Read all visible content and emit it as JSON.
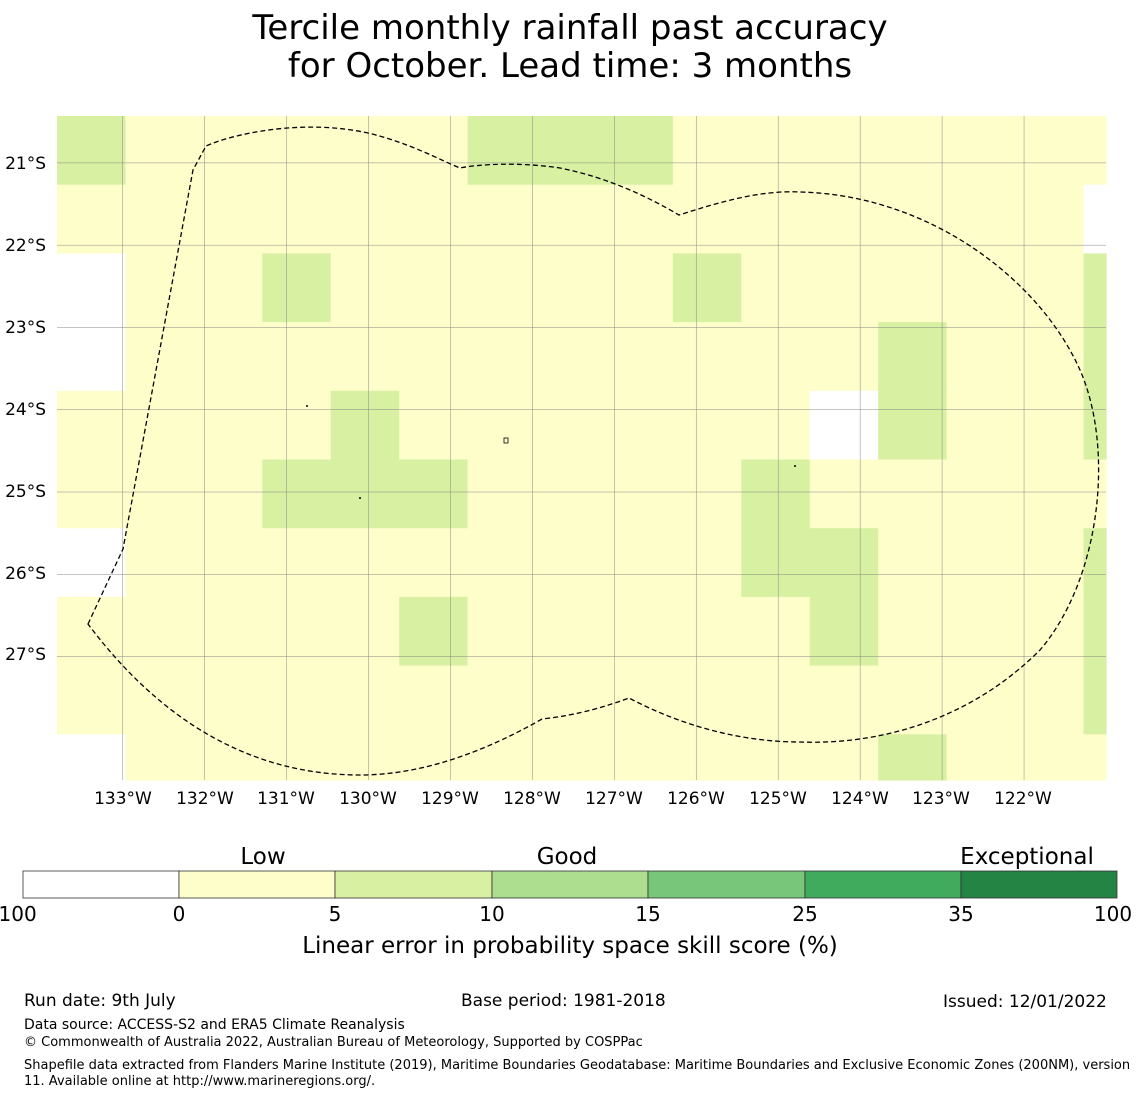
{
  "title": {
    "line1": "Tercile monthly rainfall past accuracy",
    "line2": "for October. Lead time: 3 months"
  },
  "map": {
    "lat_labels": [
      "21°S",
      "22°S",
      "23°S",
      "24°S",
      "25°S",
      "26°S",
      "27°S"
    ],
    "lon_labels": [
      "133°W",
      "132°W",
      "131°W",
      "130°W",
      "129°W",
      "128°W",
      "127°W",
      "126°W",
      "125°W",
      "124°W",
      "123°W",
      "122°W"
    ],
    "lat_values": [
      -21,
      -22,
      -23,
      -24,
      -25,
      -26,
      -27
    ],
    "lon_values": [
      -133,
      -132,
      -131,
      -130,
      -129,
      -128,
      -127,
      -126,
      -125,
      -124,
      -123,
      -122
    ],
    "extent": {
      "lon_min": -133.8,
      "lon_max": -121.0,
      "lat_min": -28.5,
      "lat_max": -20.43
    },
    "grid": {
      "lon_start": -133.8,
      "lat_start": -20.43,
      "cell_deg": 0.835,
      "class_colors": [
        "#ffffff",
        "#fefecb",
        "#d8f0a2",
        "#addd8e",
        "#78c679",
        "#41ab5d",
        "#238443"
      ],
      "rows": [
        "2111112221111111",
        "1111111111111110",
        "0112111112111112",
        "0111111111112112",
        "1111211111102112",
        "1112221111211111",
        "0111111111221112",
        "1111121111121112",
        "1111111111111112",
        "0111111111112111",
        "1111111111111111",
        "1111111111111111",
        "1121211211112221",
        "1111111111111111",
        "1111111111112111",
        "1111111111112111",
        "1112221111111121",
        "1111111111111112"
      ]
    },
    "boundary_style": "dashed"
  },
  "colorbar": {
    "categories": [
      "Low",
      "Good",
      "Exceptional"
    ],
    "ticks": [
      "-100",
      "0",
      "5",
      "10",
      "15",
      "25",
      "35",
      "100"
    ],
    "colors": [
      "#ffffff",
      "#fefecb",
      "#d8f0a2",
      "#addd8e",
      "#78c679",
      "#41ab5d",
      "#238443"
    ],
    "label": "Linear error in probability space skill score (%)"
  },
  "footer": {
    "run_date": "Run date: 9th July",
    "base_period": "Base period: 1981-2018",
    "issued": "Issued: 12/01/2022",
    "data_source": "Data source: ACCESS-S2 and ERA5 Climate Reanalysis",
    "copyright": "© Commonwealth of Australia 2022, Australian Bureau of Meteorology, Supported by COSPPac",
    "shapefile": "Shapefile data extracted from Flanders Marine Institute (2019), Maritime Boundaries Geodatabase: Maritime Boundaries and Exclusive Economic Zones (200NM), version 11. Available online at http://www.marineregions.org/."
  }
}
